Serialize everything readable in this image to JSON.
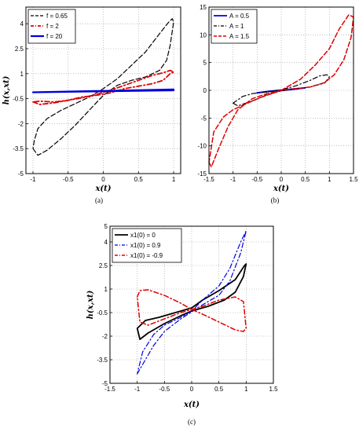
{
  "chart_data": [
    {
      "type": "line",
      "panel_label": "(a)",
      "xlabel": "x(t)",
      "ylabel": "h(x,xt)",
      "xlim": [
        -1.1,
        1.1
      ],
      "ylim": [
        -5,
        5
      ],
      "xticks": [
        -1,
        -0.5,
        0,
        0.5,
        1
      ],
      "xtick_labels": [
        "-1",
        "-0.5",
        "0",
        "0.5",
        "1"
      ],
      "yticks": [
        -5,
        -3.5,
        -2,
        -0.5,
        1,
        2.5,
        4
      ],
      "ytick_labels": [
        "-5",
        "-3.5",
        "-2",
        "-0.5",
        "1",
        "2.5",
        "4"
      ],
      "grid": true,
      "legend_position": "top-left",
      "series": [
        {
          "name": "f = 0.65",
          "color": "#000000",
          "style": "dash",
          "width": 1.2,
          "x": [
            -1.0,
            -0.93,
            -0.8,
            -0.6,
            -0.4,
            -0.2,
            0.0,
            0.2,
            0.4,
            0.6,
            0.8,
            0.9,
            0.95,
            1.0,
            0.98,
            0.93,
            0.8,
            0.6,
            0.4,
            0.2,
            0.0,
            -0.2,
            -0.4,
            -0.6,
            -0.8,
            -0.93,
            -0.98,
            -1.0
          ],
          "y": [
            -3.5,
            -3.9,
            -3.6,
            -2.9,
            -2.1,
            -1.2,
            -0.3,
            0.3,
            0.6,
            0.8,
            1.2,
            1.8,
            2.7,
            4.1,
            4.3,
            4.1,
            3.4,
            2.3,
            1.5,
            0.7,
            0.1,
            -0.4,
            -0.8,
            -1.2,
            -1.7,
            -2.3,
            -3.0,
            -3.5
          ]
        },
        {
          "name": "f = 2",
          "color": "#e00000",
          "style": "dashdot",
          "width": 1.8,
          "x": [
            -1.0,
            -0.9,
            -0.7,
            -0.5,
            -0.3,
            -0.1,
            0.1,
            0.3,
            0.5,
            0.7,
            0.85,
            0.95,
            1.0,
            0.95,
            0.85,
            0.7,
            0.5,
            0.3,
            0.1,
            -0.1,
            -0.3,
            -0.5,
            -0.7,
            -0.9,
            -1.0
          ],
          "y": [
            -0.7,
            -0.85,
            -0.75,
            -0.6,
            -0.4,
            -0.3,
            -0.15,
            0.1,
            0.25,
            0.4,
            0.6,
            1.0,
            1.1,
            1.2,
            1.05,
            0.9,
            0.6,
            0.3,
            0.0,
            -0.25,
            -0.45,
            -0.6,
            -0.7,
            -0.65,
            -0.7
          ]
        },
        {
          "name": "f = 20",
          "color": "#0000e0",
          "style": "solid",
          "width": 2.2,
          "x": [
            -1.0,
            1.0,
            1.0,
            -1.0
          ],
          "y": [
            -0.12,
            0.05,
            0.0,
            -0.12
          ]
        }
      ]
    },
    {
      "type": "line",
      "panel_label": "(b)",
      "xlabel": "x(t)",
      "ylabel": "",
      "xlim": [
        -1.5,
        1.5
      ],
      "ylim": [
        -15,
        15
      ],
      "xticks": [
        -1.5,
        -1,
        -0.5,
        0,
        0.5,
        1,
        1.5
      ],
      "xtick_labels": [
        "-1.5",
        "-1",
        "-0.5",
        "0",
        "0.5",
        "1",
        "1.5"
      ],
      "yticks": [
        -15,
        -10,
        -5,
        0,
        5,
        10,
        15
      ],
      "ytick_labels": [
        "-15",
        "-10",
        "-5",
        "0",
        "5",
        "10",
        "15"
      ],
      "grid": true,
      "legend_position": "top-left",
      "series": [
        {
          "name": "A = 0.5",
          "color": "#0000e0",
          "style": "solid",
          "width": 1.8,
          "x": [
            -0.5,
            -0.25,
            0.0,
            0.25,
            0.5,
            0.25,
            0.0,
            -0.25,
            -0.5
          ],
          "y": [
            -0.45,
            -0.2,
            -0.05,
            0.15,
            0.45,
            0.25,
            0.05,
            -0.15,
            -0.45
          ]
        },
        {
          "name": "A = 1",
          "color": "#000000",
          "style": "dashdot",
          "width": 1.2,
          "x": [
            -1.0,
            -0.9,
            -0.6,
            -0.3,
            0.0,
            0.3,
            0.6,
            0.9,
            1.0,
            0.95,
            0.8,
            0.6,
            0.3,
            0.0,
            -0.3,
            -0.6,
            -0.8,
            -1.0
          ],
          "y": [
            -2.3,
            -2.8,
            -1.9,
            -0.8,
            -0.1,
            0.3,
            0.6,
            1.3,
            2.4,
            2.8,
            2.6,
            1.8,
            0.8,
            0.1,
            -0.3,
            -0.6,
            -1.1,
            -2.3
          ]
        },
        {
          "name": "A = 1.5",
          "color": "#e00000",
          "style": "dash",
          "width": 1.5,
          "x": [
            -1.5,
            -1.45,
            -1.3,
            -1.1,
            -0.9,
            -0.6,
            -0.3,
            0.0,
            0.3,
            0.6,
            0.9,
            1.1,
            1.3,
            1.45,
            1.5,
            1.4,
            1.2,
            1.0,
            0.7,
            0.4,
            0.0,
            -0.4,
            -0.7,
            -1.0,
            -1.2,
            -1.4,
            -1.5
          ],
          "y": [
            -13.0,
            -13.8,
            -10.5,
            -6.5,
            -3.5,
            -1.5,
            -0.6,
            0.0,
            0.3,
            0.6,
            1.4,
            2.8,
            5.5,
            9.5,
            13.2,
            13.6,
            11.0,
            7.5,
            4.5,
            2.0,
            0.0,
            -1.2,
            -2.3,
            -3.5,
            -4.8,
            -7.5,
            -13.0
          ]
        }
      ]
    },
    {
      "type": "line",
      "panel_label": "(c)",
      "xlabel": "x(t)",
      "ylabel": "h(x,xt)",
      "xlim": [
        -1.5,
        1.5
      ],
      "ylim": [
        -5,
        5
      ],
      "xticks": [
        -1.5,
        -1,
        -0.5,
        0,
        0.5,
        1,
        1.5
      ],
      "xtick_labels": [
        "-1.5",
        "-1",
        "-0.5",
        "0",
        "0.5",
        "1",
        "1.5"
      ],
      "yticks": [
        -5,
        -3.5,
        -2,
        -0.5,
        1,
        2.5,
        4,
        5
      ],
      "ytick_labels": [
        "-5",
        "-3.5",
        "-2",
        "-0.5",
        "1",
        "2.5",
        "4",
        "5"
      ],
      "grid": true,
      "legend_position": "top-left",
      "series": [
        {
          "name": "x1(0) = 0",
          "color": "#000000",
          "style": "solid",
          "width": 1.8,
          "x": [
            -1.0,
            -0.95,
            -0.8,
            -0.5,
            -0.2,
            0.0,
            0.3,
            0.6,
            0.8,
            0.95,
            1.0,
            0.97,
            0.8,
            0.5,
            0.2,
            0.0,
            -0.3,
            -0.6,
            -0.85,
            -1.0
          ],
          "y": [
            -1.5,
            -2.2,
            -1.8,
            -1.2,
            -0.7,
            -0.4,
            -0.1,
            0.3,
            0.8,
            1.8,
            2.6,
            2.5,
            1.6,
            0.9,
            0.3,
            -0.2,
            -0.5,
            -0.8,
            -1.0,
            -1.5
          ]
        },
        {
          "name": "x1(0) = 0.9",
          "color": "#0000e0",
          "style": "dashdot",
          "width": 1.2,
          "x": [
            -1.0,
            -0.9,
            -0.7,
            -0.5,
            -0.2,
            0.0,
            0.2,
            0.5,
            0.7,
            0.9,
            1.0,
            0.9,
            0.7,
            0.5,
            0.2,
            0.0,
            -0.2,
            -0.5,
            -0.7,
            -0.9,
            -1.0
          ],
          "y": [
            -4.4,
            -3.8,
            -2.6,
            -1.7,
            -0.9,
            -0.45,
            0.0,
            0.6,
            1.5,
            3.3,
            4.7,
            4.0,
            2.3,
            1.2,
            0.3,
            -0.4,
            -0.8,
            -1.3,
            -1.9,
            -3.0,
            -4.4
          ]
        },
        {
          "name": "x1(0) = -0.9",
          "color": "#e00000",
          "style": "dashdot",
          "width": 1.5,
          "x": [
            -1.0,
            -0.95,
            -0.8,
            -0.5,
            -0.2,
            0.0,
            0.2,
            0.5,
            0.8,
            0.95,
            1.0,
            0.95,
            0.8,
            0.5,
            0.2,
            0.0,
            -0.2,
            -0.5,
            -0.8,
            -0.95,
            -1.0
          ],
          "y": [
            0.5,
            0.9,
            0.95,
            0.6,
            0.1,
            -0.3,
            -0.6,
            -1.1,
            -1.6,
            -1.7,
            -1.5,
            0.2,
            0.5,
            0.3,
            -0.1,
            -0.3,
            -0.5,
            -0.9,
            -1.3,
            -1.1,
            0.5
          ]
        }
      ]
    }
  ]
}
